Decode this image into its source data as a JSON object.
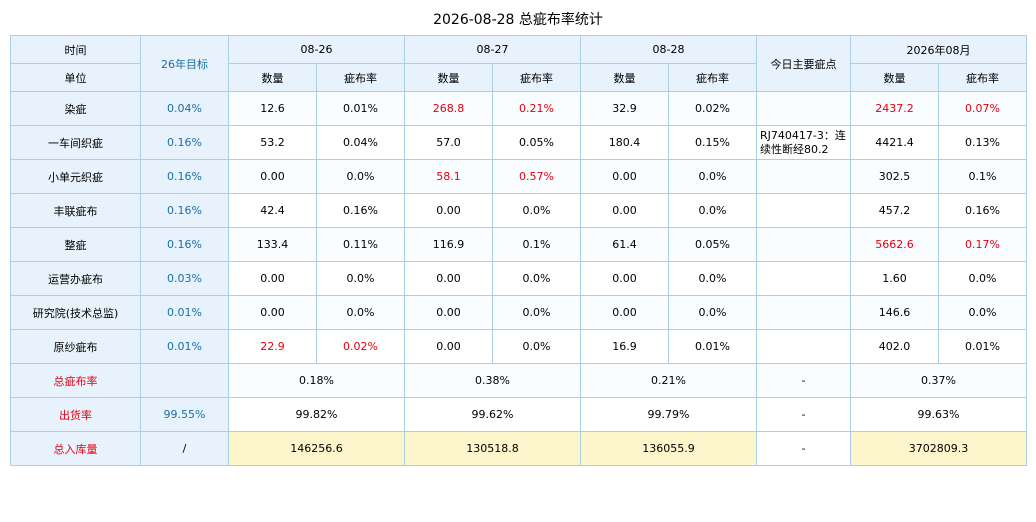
{
  "title": "2026-08-28 总疵布率统计",
  "header": {
    "time_label": "时间",
    "unit_label": "单位",
    "target_label": "26年目标",
    "dates": [
      "08-26",
      "08-27",
      "08-28"
    ],
    "main_defect_label": "今日主要疵点",
    "month_label": "2026年08月",
    "qty_label": "数量",
    "rate_label": "疵布率"
  },
  "rows": [
    {
      "name": "染疵",
      "target": "0.04%",
      "d1q": "12.6",
      "d1r": "0.01%",
      "d2q": "268.8",
      "d2r": "0.21%",
      "d3q": "32.9",
      "d3r": "0.02%",
      "note": "",
      "mq": "2437.2",
      "mr": "0.07%"
    },
    {
      "name": "一车间织疵",
      "target": "0.16%",
      "d1q": "53.2",
      "d1r": "0.04%",
      "d2q": "57.0",
      "d2r": "0.05%",
      "d3q": "180.4",
      "d3r": "0.15%",
      "note": "RJ740417-3：连续性断经80.2",
      "mq": "4421.4",
      "mr": "0.13%"
    },
    {
      "name": "小单元织疵",
      "target": "0.16%",
      "d1q": "0.00",
      "d1r": "0.0%",
      "d2q": "58.1",
      "d2r": "0.57%",
      "d3q": "0.00",
      "d3r": "0.0%",
      "note": "",
      "mq": "302.5",
      "mr": "0.1%"
    },
    {
      "name": "丰联疵布",
      "target": "0.16%",
      "d1q": "42.4",
      "d1r": "0.16%",
      "d2q": "0.00",
      "d2r": "0.0%",
      "d3q": "0.00",
      "d3r": "0.0%",
      "note": "",
      "mq": "457.2",
      "mr": "0.16%"
    },
    {
      "name": "整疵",
      "target": "0.16%",
      "d1q": "133.4",
      "d1r": "0.11%",
      "d2q": "116.9",
      "d2r": "0.1%",
      "d3q": "61.4",
      "d3r": "0.05%",
      "note": "",
      "mq": "5662.6",
      "mr": "0.17%"
    },
    {
      "name": "运营办疵布",
      "target": "0.03%",
      "d1q": "0.00",
      "d1r": "0.0%",
      "d2q": "0.00",
      "d2r": "0.0%",
      "d3q": "0.00",
      "d3r": "0.0%",
      "note": "",
      "mq": "1.60",
      "mr": "0.0%"
    },
    {
      "name": "研究院(技术总监)",
      "target": "0.01%",
      "d1q": "0.00",
      "d1r": "0.0%",
      "d2q": "0.00",
      "d2r": "0.0%",
      "d3q": "0.00",
      "d3r": "0.0%",
      "note": "",
      "mq": "146.6",
      "mr": "0.0%"
    },
    {
      "name": "原纱疵布",
      "target": "0.01%",
      "d1q": "22.9",
      "d1r": "0.02%",
      "d2q": "0.00",
      "d2r": "0.0%",
      "d3q": "16.9",
      "d3r": "0.01%",
      "note": "",
      "mq": "402.0",
      "mr": "0.01%"
    }
  ],
  "summary": {
    "total_rate": {
      "label": "总疵布率",
      "target": "",
      "d1": "0.18%",
      "d2": "0.38%",
      "d3": "0.21%",
      "note": "-",
      "month": "0.37%"
    },
    "shipping_rate": {
      "label": "出货率",
      "target": "99.55%",
      "d1": "99.82%",
      "d2": "99.62%",
      "d3": "99.79%",
      "note": "-",
      "month": "99.63%"
    },
    "inventory": {
      "label": "总入库量",
      "target": "/",
      "d1": "146256.6",
      "d2": "130518.8",
      "d3": "136055.9",
      "note": "-",
      "month": "3702809.3"
    }
  },
  "colors": {
    "highlight": "#e60012",
    "header_bg": "#e8f2fc",
    "target_text": "#1a6fa3",
    "inventory_bg": "#fdf5cc",
    "border": "#a9d0e8"
  }
}
